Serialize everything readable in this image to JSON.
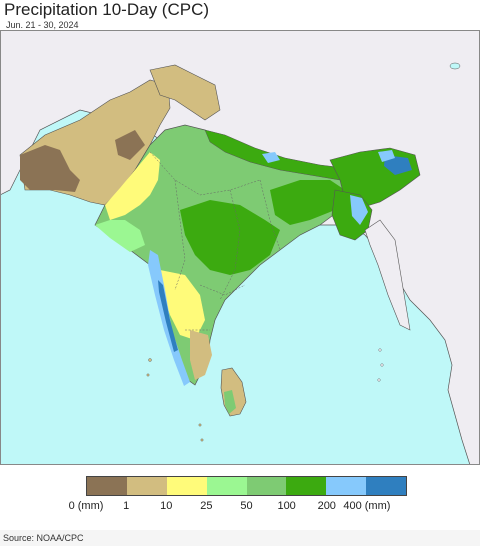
{
  "title": "Precipitation 10-Day (CPC)",
  "subtitle": "Jun. 21 - 30, 2024",
  "source": "Source: NOAA/CPC",
  "colors": {
    "ocean": "#bff8f8",
    "outside_land": "#efedf2",
    "border": "#555555"
  },
  "legend": {
    "swatches": [
      "#8b7355",
      "#d2bd80",
      "#fffb7a",
      "#9bf792",
      "#7ecb73",
      "#3caa10",
      "#86c9fc",
      "#2f7fbf"
    ],
    "labels": [
      "0 (mm)",
      "1",
      "10",
      "25",
      "50",
      "100",
      "200",
      "400 (mm)"
    ]
  }
}
